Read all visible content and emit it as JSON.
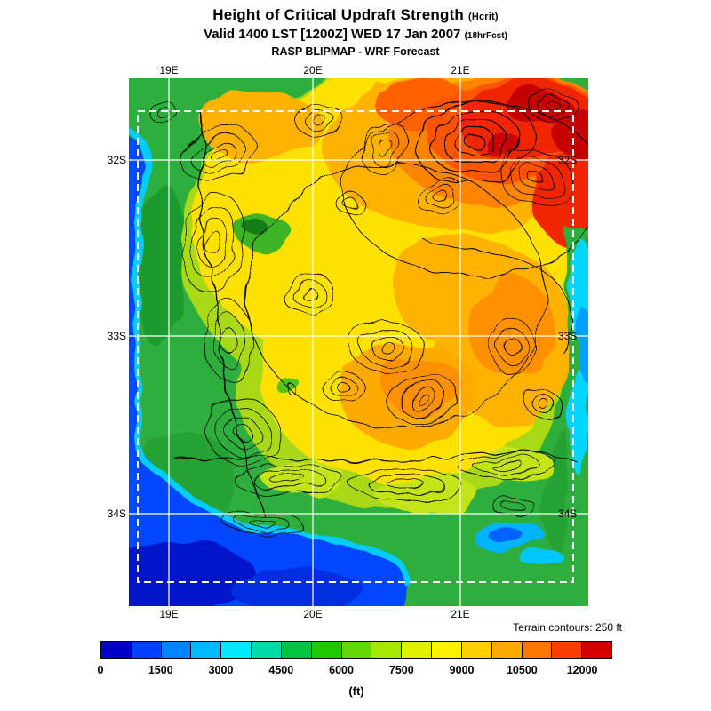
{
  "header": {
    "title": "Height of Critical Updraft Strength",
    "title_suffix": "(Hcrit)",
    "valid": "Valid 1400 LST [1200Z] WED 17 Jan 2007",
    "valid_suffix": "(18hrFcst)",
    "model": "RASP BLIPMAP - WRF Forecast"
  },
  "map": {
    "lon_labels": [
      "19E",
      "20E",
      "21E"
    ],
    "lat_labels": [
      "32S",
      "33S",
      "34S"
    ],
    "terrain_note": "Terrain contours: 250 ft"
  },
  "colorbar": {
    "unit": "(ft)",
    "ticks": [
      "0",
      "1500",
      "3000",
      "4500",
      "6000",
      "7500",
      "9000",
      "10500",
      "12000"
    ],
    "segments": [
      "#0000c8",
      "#0041ff",
      "#0082ff",
      "#00baff",
      "#00e9ff",
      "#00dca8",
      "#00c341",
      "#1fc900",
      "#62d800",
      "#a5e700",
      "#e0f200",
      "#fff200",
      "#ffd100",
      "#ffa800",
      "#ff7500",
      "#f93c00",
      "#d40000"
    ],
    "scale": {
      "min_ft": 0,
      "max_ft": 12750,
      "step_ft": 750
    }
  }
}
